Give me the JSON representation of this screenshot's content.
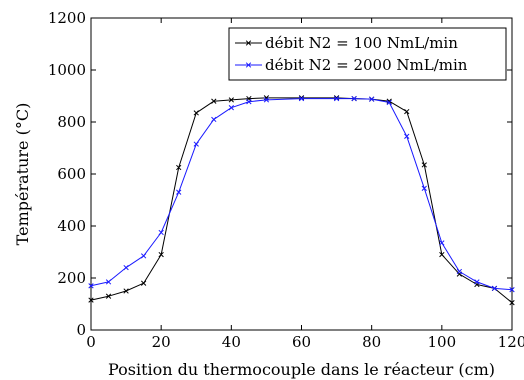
{
  "chart_data": {
    "type": "line",
    "xlabel": "Position du thermocouple dans le réacteur (cm)",
    "ylabel": "Température (°C)",
    "xlim": [
      0,
      120
    ],
    "ylim": [
      0,
      1200
    ],
    "xticks": [
      0,
      20,
      40,
      60,
      80,
      100,
      120
    ],
    "yticks": [
      0,
      200,
      400,
      600,
      800,
      1000,
      1200
    ],
    "grid": false,
    "legend_position": "top-right",
    "series": [
      {
        "name": "débit N2 = 100 NmL/min",
        "color": "#000000",
        "marker": "x",
        "x": [
          0,
          5,
          10,
          15,
          20,
          25,
          30,
          35,
          40,
          45,
          50,
          60,
          70,
          75,
          80,
          85,
          90,
          95,
          100,
          105,
          110,
          115,
          120
        ],
        "y": [
          115,
          130,
          150,
          180,
          290,
          625,
          835,
          880,
          885,
          890,
          893,
          893,
          893,
          890,
          888,
          880,
          840,
          635,
          290,
          215,
          175,
          160,
          105
        ]
      },
      {
        "name": "débit N2 = 2000 NmL/min",
        "color": "#1a1aff",
        "marker": "x",
        "x": [
          0,
          5,
          10,
          15,
          20,
          25,
          30,
          35,
          40,
          45,
          50,
          60,
          70,
          75,
          80,
          85,
          90,
          95,
          100,
          105,
          110,
          115,
          120
        ],
        "y": [
          170,
          185,
          240,
          285,
          375,
          530,
          715,
          810,
          855,
          878,
          885,
          890,
          890,
          890,
          888,
          875,
          745,
          545,
          335,
          225,
          185,
          160,
          155
        ]
      }
    ]
  }
}
